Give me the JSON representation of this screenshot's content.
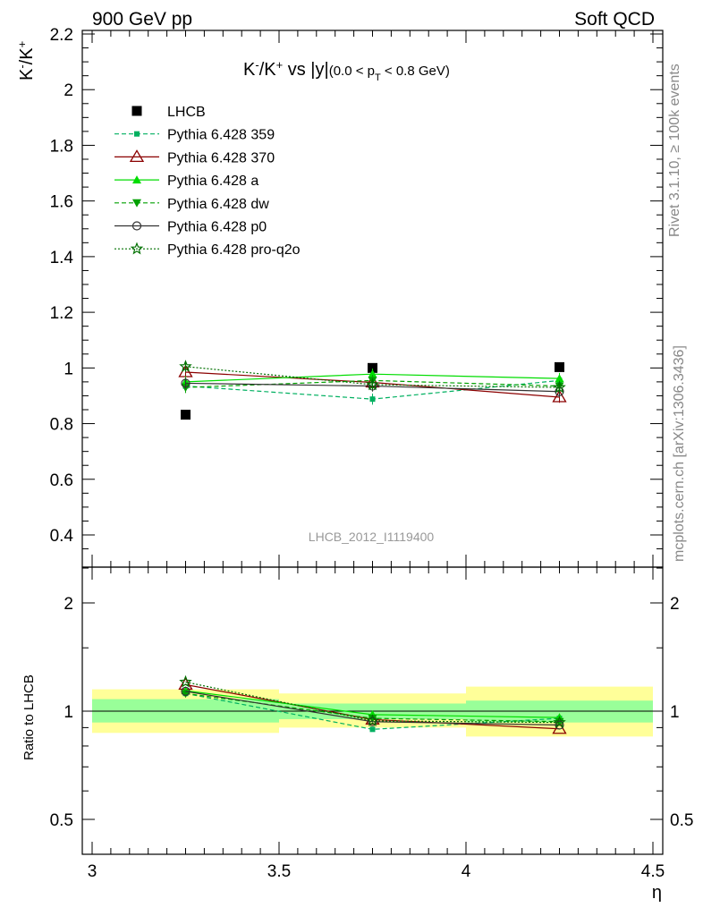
{
  "header": {
    "left": "900 GeV pp",
    "right": "Soft QCD"
  },
  "side_labels": {
    "rivet": "Rivet 3.1.10, ≥ 100k events",
    "mcplots": "mcplots.cern.ch [arXiv:1306.3436]"
  },
  "watermark": "LHCB_2012_I1119400",
  "colors": {
    "data": "#000000",
    "p359": "#00b060",
    "p370": "#8b0000",
    "pa": "#00dd00",
    "pdw": "#00a000",
    "pp0": "#333333",
    "pq2o": "#007000",
    "band_inner": "#99ff99",
    "band_outer": "#ffff99"
  },
  "chart_data": [
    {
      "type": "line",
      "panel": "main",
      "title": "K⁻/K⁺ vs |y| (0.0 < p_T < 0.8 GeV)",
      "xlabel": "η",
      "ylabel": "K⁻/K⁺",
      "xlim": [
        3.0,
        4.5
      ],
      "ylim": [
        0.3,
        2.2
      ],
      "yticks": [
        "0.4",
        "0.6",
        "0.8",
        "1",
        "1.2",
        "1.4",
        "1.6",
        "1.8",
        "2",
        "2.2"
      ],
      "x": [
        3.25,
        3.75,
        4.25
      ],
      "series": [
        {
          "name": "LHCB",
          "key": "data",
          "marker": "square",
          "values": [
            0.832,
            1.0,
            1.003
          ],
          "err": [
            0.0,
            0.0,
            0.0
          ]
        },
        {
          "name": "Pythia 6.428 359",
          "key": "p359",
          "marker": "small-square",
          "dash": "dashed",
          "values": [
            0.935,
            0.888,
            0.955
          ],
          "err": [
            0.02,
            0.02,
            0.02
          ]
        },
        {
          "name": "Pythia 6.428 370",
          "key": "p370",
          "marker": "open-triangle",
          "dash": "solid",
          "values": [
            0.985,
            0.948,
            0.895
          ],
          "err": [
            0.02,
            0.02,
            0.02
          ]
        },
        {
          "name": "Pythia 6.428 a",
          "key": "pa",
          "marker": "triangle",
          "dash": "solid",
          "values": [
            0.95,
            0.978,
            0.962
          ],
          "err": [
            0.02,
            0.02,
            0.02
          ]
        },
        {
          "name": "Pythia 6.428 dw",
          "key": "pdw",
          "marker": "inverted-triangle",
          "dash": "dashed",
          "values": [
            0.93,
            0.955,
            0.935
          ],
          "err": [
            0.02,
            0.02,
            0.02
          ]
        },
        {
          "name": "Pythia 6.428 p0",
          "key": "pp0",
          "marker": "open-circle",
          "dash": "solid",
          "values": [
            0.945,
            0.935,
            0.915
          ],
          "err": [
            0.02,
            0.02,
            0.02
          ]
        },
        {
          "name": "Pythia 6.428 pro-q2o",
          "key": "pq2o",
          "marker": "star",
          "dash": "dotted",
          "values": [
            1.005,
            0.94,
            0.93
          ],
          "err": [
            0.02,
            0.02,
            0.02
          ]
        }
      ]
    },
    {
      "type": "line",
      "panel": "ratio",
      "ylabel": "Ratio to LHCB",
      "xlabel": "η",
      "xlim": [
        3.0,
        4.5
      ],
      "xticks": [
        "3",
        "3.5",
        "4",
        "4.5"
      ],
      "ylim": [
        0.4,
        2.5
      ],
      "yscale": "log",
      "yticks": [
        "0.5",
        "1",
        "2"
      ],
      "bands": [
        {
          "xmin": 3.0,
          "xmax": 3.5,
          "inner": [
            0.93,
            1.08
          ],
          "outer": [
            0.87,
            1.15
          ]
        },
        {
          "xmin": 3.5,
          "xmax": 4.0,
          "inner": [
            0.95,
            1.05
          ],
          "outer": [
            0.9,
            1.12
          ]
        },
        {
          "xmin": 4.0,
          "xmax": 4.5,
          "inner": [
            0.93,
            1.07
          ],
          "outer": [
            0.85,
            1.17
          ]
        }
      ],
      "x": [
        3.25,
        3.75,
        4.25
      ],
      "series": [
        {
          "key": "p359",
          "marker": "small-square",
          "dash": "dashed",
          "values": [
            1.12,
            0.89,
            0.955
          ]
        },
        {
          "key": "p370",
          "marker": "open-triangle",
          "dash": "solid",
          "values": [
            1.185,
            0.948,
            0.893
          ]
        },
        {
          "key": "pa",
          "marker": "triangle",
          "dash": "solid",
          "values": [
            1.14,
            0.978,
            0.96
          ]
        },
        {
          "key": "pdw",
          "marker": "inverted-triangle",
          "dash": "dashed",
          "values": [
            1.12,
            0.955,
            0.935
          ]
        },
        {
          "key": "pp0",
          "marker": "open-circle",
          "dash": "solid",
          "values": [
            1.135,
            0.935,
            0.915
          ]
        },
        {
          "key": "pq2o",
          "marker": "star",
          "dash": "dotted",
          "values": [
            1.205,
            0.94,
            0.93
          ]
        }
      ]
    }
  ]
}
